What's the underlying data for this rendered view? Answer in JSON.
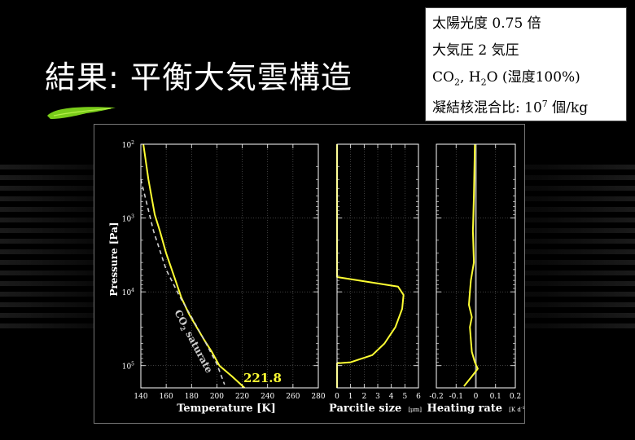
{
  "slide": {
    "title": "結果: 平衡大気雲構造"
  },
  "info_box": {
    "line1": "太陽光度  0.75 倍",
    "line2": "大気圧 2 気圧",
    "line3_a": "CO",
    "line3_sub1": "2",
    "line3_b": ", H",
    "line3_sub2": "2",
    "line3_c": "O (湿度100%)",
    "line4_a": "凝結核混合比: 10",
    "line4_sup": "7",
    "line4_b": " 個/kg"
  },
  "colors": {
    "curve": "#ffff33",
    "saturate": "#d0d0d0",
    "grid": "#666666",
    "axis": "#ffffff",
    "zero_line": "#aaaaaa",
    "accent_leaf": "#7acc1a"
  },
  "chart_data": [
    {
      "type": "line",
      "ylabel": "Pressure [Pa]",
      "xlabel": "Temperature [K]",
      "ylog": true,
      "yreversed": true,
      "ylim": [
        100,
        200000
      ],
      "xlim": [
        140,
        280
      ],
      "xticks": [
        "140",
        "160",
        "180",
        "200",
        "220",
        "240",
        "260",
        "280"
      ],
      "yticks": [
        {
          "base": "10",
          "exp": "2",
          "value": 100
        },
        {
          "base": "10",
          "exp": "3",
          "value": 1000
        },
        {
          "base": "10",
          "exp": "4",
          "value": 10000
        },
        {
          "base": "10",
          "exp": "5",
          "value": 100000
        }
      ],
      "grid": true,
      "series": [
        {
          "x": [
            142,
            146,
            151,
            155,
            160,
            166,
            172,
            178,
            184,
            190,
            196,
            202,
            212,
            221.8
          ],
          "y": [
            100,
            300,
            900,
            1500,
            3000,
            6000,
            12000,
            20000,
            30000,
            45000,
            65000,
            100000,
            140000,
            200000
          ]
        },
        {
          "style": "dashed",
          "x": [
            140,
            150,
            160,
            170,
            180,
            190,
            200,
            206
          ],
          "y": [
            300,
            1500,
            5000,
            11000,
            22000,
            45000,
            95000,
            180000
          ]
        }
      ],
      "annotations": [
        {
          "text": "221.8",
          "x": 221.8,
          "y": 170000
        },
        {
          "text_a": "CO",
          "text_sub": "2",
          "text_b": " saturate"
        }
      ]
    },
    {
      "type": "line",
      "xlabel": "Parcitle size",
      "xunit": "[μm]",
      "ylog": true,
      "yreversed": true,
      "ylim": [
        100,
        200000
      ],
      "xlim": [
        0,
        6
      ],
      "xticks": [
        "0",
        "1",
        "2",
        "3",
        "4",
        "5",
        "6"
      ],
      "grid": true,
      "series": [
        {
          "x": [
            0,
            0,
            0,
            4.5,
            4.9,
            4.8,
            4.3,
            3.5,
            2.6,
            1.0,
            0,
            0
          ],
          "y": [
            100,
            6000,
            6300,
            8500,
            11000,
            17000,
            30000,
            50000,
            72000,
            90000,
            93000,
            200000
          ]
        }
      ]
    },
    {
      "type": "line",
      "xlabel": "Heating rate",
      "xunit": "[K d",
      "xunit_sup": "-1",
      "xunit_close": "]",
      "ylog": true,
      "yreversed": true,
      "ylim": [
        100,
        200000
      ],
      "xlim": [
        -0.2,
        0.2
      ],
      "xticks": [
        "-0.2",
        "-0.1",
        "0",
        "0.1",
        "0.2"
      ],
      "grid": true,
      "series": [
        {
          "x": [
            -0.005,
            -0.01,
            -0.015,
            -0.01,
            -0.025,
            -0.03,
            -0.035,
            -0.02,
            -0.03,
            -0.025,
            -0.02,
            -0.005,
            0.01,
            -0.02,
            -0.06
          ],
          "y": [
            100,
            500,
            1500,
            4000,
            7000,
            10000,
            15000,
            22000,
            30000,
            45000,
            65000,
            90000,
            110000,
            140000,
            190000
          ]
        }
      ]
    }
  ]
}
